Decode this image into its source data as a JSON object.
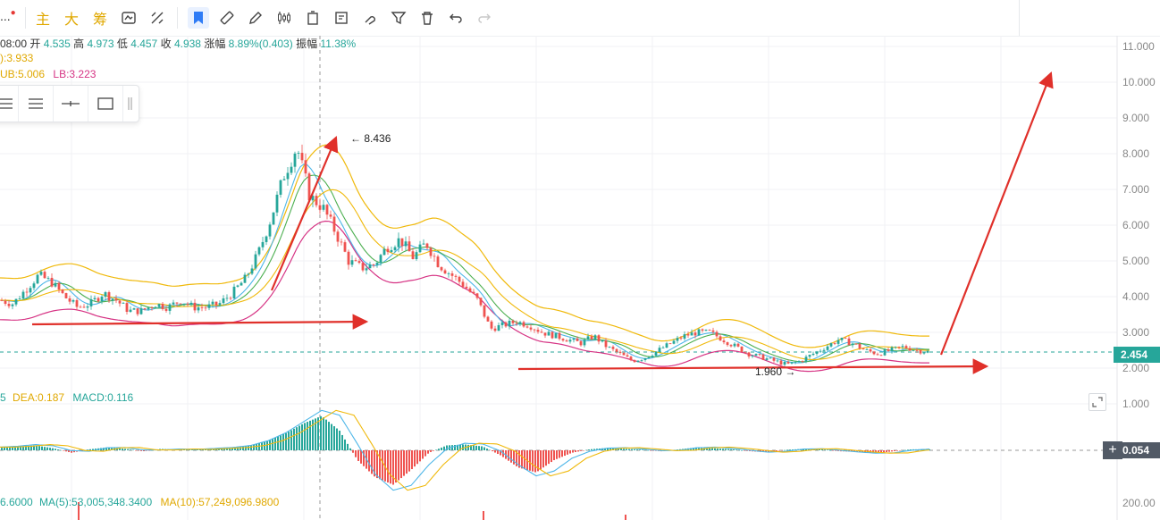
{
  "toolbar": {
    "dots_label": "...",
    "items": [
      {
        "label": "主"
      },
      {
        "label": "大"
      },
      {
        "label": "筹"
      }
    ],
    "icons": [
      "screenshot-icon",
      "indicator-icon",
      "bookmark-icon",
      "ruler-icon",
      "pen-icon",
      "candlestick-icon",
      "copy-icon",
      "notes-icon",
      "magnet-icon",
      "filter-icon",
      "delete-icon",
      "undo-icon",
      "redo-icon"
    ]
  },
  "info": {
    "time": "08:00",
    "open_label": "开",
    "open": "4.535",
    "high_label": "高",
    "high": "4.973",
    "low_label": "低",
    "low": "4.457",
    "close_label": "收",
    "close": "4.938",
    "change_label": "涨幅",
    "change": "8.89%(0.403)",
    "amp_label": "振幅",
    "amp": "11.38%",
    "ma_line": "):3.933",
    "ub": "UB:5.006",
    "lb": "LB:3.223",
    "macd_prefix": "5",
    "dea": "DEA:0.187",
    "macd": "MACD:0.116",
    "vol_prefix": "6.6000",
    "vol_ma5": "MA(5):53,005,348.3400",
    "vol_ma10": "MA(10):57,249,096.9800"
  },
  "price_axis": {
    "labels": [
      "11.000",
      "10.000",
      "9.000",
      "8.000",
      "7.000",
      "6.000",
      "5.000",
      "4.000",
      "3.000",
      "2.000",
      "1.000"
    ],
    "current_price": "2.454",
    "macd_current": "0.054",
    "volume_label": "200.00"
  },
  "annotations": {
    "high_marker": "← 8.436",
    "low_marker": "1.960 →"
  },
  "colors": {
    "up": "#26a69a",
    "down": "#ef5350",
    "ma_yellow": "#f0b90b",
    "ma_pink": "#d63384",
    "arrow_red": "#e0302a",
    "price_tag": "#26a69a",
    "macd_tag": "#525a66"
  },
  "chart_data": {
    "type": "candlestick",
    "title": "",
    "ylim": [
      0.5,
      11.5
    ],
    "y_ticks": [
      1,
      2,
      3,
      4,
      5,
      6,
      7,
      8,
      9,
      10,
      11
    ],
    "price_path": [
      3.9,
      3.8,
      4.2,
      4.6,
      4.4,
      4.0,
      3.7,
      3.8,
      4.1,
      3.9,
      3.6,
      3.6,
      3.8,
      3.7,
      3.9,
      3.7,
      3.7,
      3.8,
      4.1,
      4.5,
      5.2,
      6.2,
      7.4,
      8.2,
      6.8,
      6.5,
      5.8,
      5.0,
      4.8,
      4.9,
      5.4,
      5.6,
      5.1,
      5.5,
      4.9,
      4.6,
      4.3,
      3.9,
      3.1,
      3.2,
      3.3,
      3.2,
      3.0,
      2.9,
      2.8,
      2.7,
      2.9,
      2.6,
      2.4,
      2.2,
      2.3,
      2.5,
      2.7,
      2.9,
      3.0,
      3.0,
      2.8,
      2.6,
      2.4,
      2.3,
      2.2,
      2.1,
      2.2,
      2.4,
      2.6,
      2.8,
      2.7,
      2.5,
      2.4,
      2.5,
      2.6,
      2.5,
      2.45
    ],
    "macd_path": [
      0.05,
      0.08,
      0.1,
      0.04,
      -0.05,
      0.02,
      0.06,
      0.03,
      -0.02,
      0.03,
      0.01,
      0.02,
      0.04,
      0.05,
      0.1,
      0.2,
      0.35,
      0.55,
      0.7,
      0.4,
      -0.2,
      -0.55,
      -0.7,
      -0.4,
      -0.05,
      0.1,
      0.12,
      0.08,
      -0.1,
      -0.35,
      -0.45,
      -0.2,
      -0.05,
      0.02,
      0.05,
      0.03,
      0.01,
      -0.02,
      0.02,
      0.06,
      0.04,
      0.02,
      -0.02,
      -0.04,
      0.01,
      0.03,
      0.02,
      -0.02,
      -0.03,
      -0.06,
      -0.02,
      0.02,
      0.02
    ]
  }
}
